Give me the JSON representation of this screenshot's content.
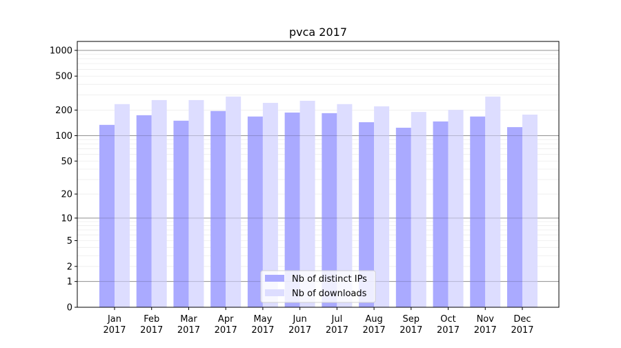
{
  "chart_data": {
    "type": "bar",
    "title": "pvca 2017",
    "xlabel": "",
    "ylabel": "",
    "yscale": "symlog",
    "ylim": [
      0,
      1300
    ],
    "grid": true,
    "legend_position": "bottom-center",
    "categories": [
      "Jan\n2017",
      "Feb\n2017",
      "Mar\n2017",
      "Apr\n2017",
      "May\n2017",
      "Jun\n2017",
      "Jul\n2017",
      "Aug\n2017",
      "Sep\n2017",
      "Oct\n2017",
      "Nov\n2017",
      "Dec\n2017"
    ],
    "yticks": [
      0,
      1,
      2,
      5,
      10,
      20,
      50,
      100,
      200,
      500,
      1000
    ],
    "series": [
      {
        "name": "Nb of distinct IPs",
        "color": "#aaaaff",
        "values": [
          134,
          174,
          150,
          195,
          168,
          187,
          184,
          144,
          124,
          147,
          168,
          126
        ]
      },
      {
        "name": "Nb of downloads",
        "color": "#ddddff",
        "values": [
          235,
          262,
          262,
          288,
          243,
          257,
          235,
          221,
          190,
          201,
          288,
          177
        ]
      }
    ]
  }
}
